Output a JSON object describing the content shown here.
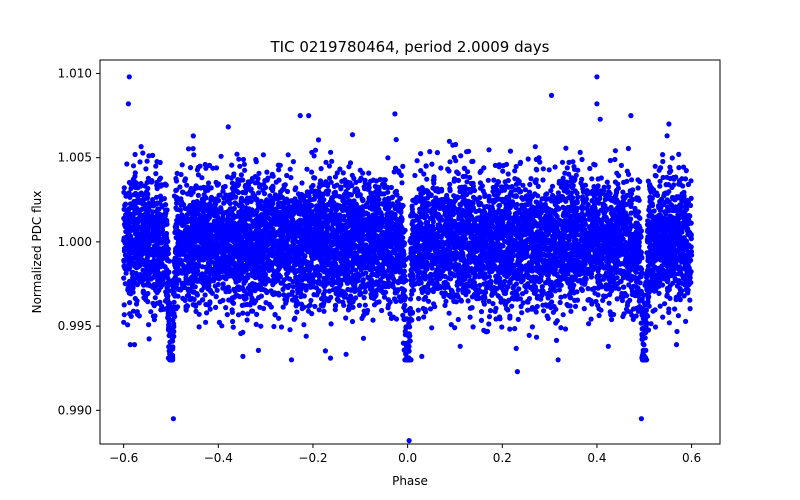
{
  "chart_data": {
    "type": "scatter",
    "title": "TIC 0219780464, period 2.0009 days",
    "xlabel": "Phase",
    "ylabel": "Normalized PDC flux",
    "xlim": [
      -0.65,
      0.66
    ],
    "ylim": [
      0.988,
      1.0108
    ],
    "x_ticks": [
      -0.6,
      -0.4,
      -0.2,
      0.0,
      0.2,
      0.4,
      0.6
    ],
    "x_tick_labels": [
      "−0.6",
      "−0.4",
      "−0.2",
      "0.0",
      "0.2",
      "0.4",
      "0.6"
    ],
    "y_ticks": [
      0.99,
      0.995,
      1.0,
      1.005,
      1.01
    ],
    "y_tick_labels": [
      "0.990",
      "0.995",
      "1.000",
      "1.005",
      "1.010"
    ],
    "marker_color": "#0000ff",
    "series": [
      {
        "name": "PDC flux",
        "phase_range": [
          -0.6,
          0.6
        ],
        "baseline_flux": 1.0,
        "band_core": [
          0.9965,
          1.0045
        ],
        "scatter_extremes": [
          0.9932,
          1.0075
        ],
        "primary_eclipse": {
          "center_phase": 0.0,
          "min_flux": 0.9882,
          "half_width": 0.012
        },
        "secondary_eclipses": [
          {
            "center_phase": -0.5,
            "min_flux": 0.9895,
            "half_width": 0.012
          },
          {
            "center_phase": 0.5,
            "min_flux": 0.9895,
            "half_width": 0.012
          }
        ],
        "highlighted_points": [
          {
            "x": -0.588,
            "y": 1.0098
          },
          {
            "x": 0.4,
            "y": 1.0098
          },
          {
            "x": 0.304,
            "y": 1.0087
          },
          {
            "x": -0.59,
            "y": 1.0082
          },
          {
            "x": 0.4,
            "y": 1.0082
          },
          {
            "x": -0.027,
            "y": 1.0076
          },
          {
            "x": -0.227,
            "y": 1.0075
          },
          {
            "x": -0.209,
            "y": 1.0075
          },
          {
            "x": 0.552,
            "y": 1.007
          },
          {
            "x": -0.348,
            "y": 0.9932
          },
          {
            "x": -0.163,
            "y": 0.9931
          },
          {
            "x": 0.03,
            "y": 0.9932
          },
          {
            "x": 0.318,
            "y": 0.993
          },
          {
            "x": 0.232,
            "y": 0.9923
          },
          {
            "x": -0.586,
            "y": 0.9939
          },
          {
            "x": -0.577,
            "y": 0.9939
          },
          {
            "x": 0.568,
            "y": 0.9939
          },
          {
            "x": 0.424,
            "y": 0.9938
          },
          {
            "x": 0.111,
            "y": 0.9938
          },
          {
            "x": 0.003,
            "y": 0.9882
          },
          {
            "x": -0.495,
            "y": 0.9895
          },
          {
            "x": 0.494,
            "y": 0.9895
          }
        ]
      }
    ]
  }
}
